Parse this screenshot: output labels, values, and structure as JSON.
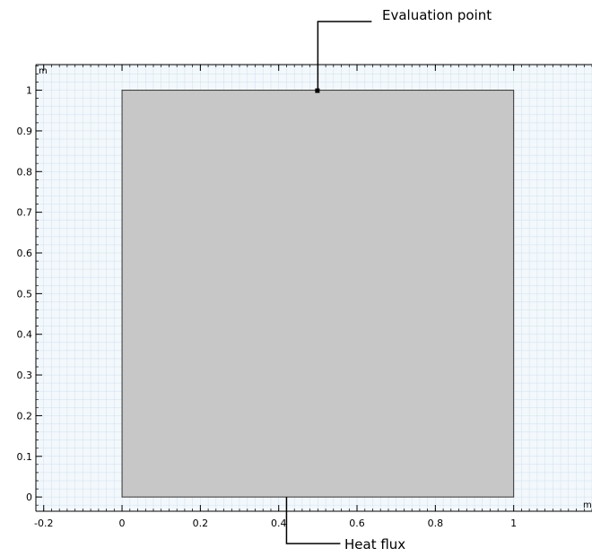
{
  "plot": {
    "x_range": [
      -0.22,
      1.2
    ],
    "y_range": [
      -0.035,
      1.063
    ],
    "x_ticks": [
      -0.2,
      0,
      0.2,
      0.4,
      0.6,
      0.8,
      1
    ],
    "x_tick_labels": [
      "-0.2",
      "0",
      "0.2",
      "0.4",
      "0.6",
      "0.8",
      "1"
    ],
    "y_ticks": [
      0,
      0.1,
      0.2,
      0.3,
      0.4,
      0.5,
      0.6,
      0.7,
      0.8,
      0.9,
      1
    ],
    "y_tick_labels": [
      "0",
      "0.1",
      "0.2",
      "0.3",
      "0.4",
      "0.5",
      "0.6",
      "0.7",
      "0.8",
      "0.9",
      "1"
    ],
    "x_unit": "m",
    "y_unit": "m",
    "minor_step": 0.02,
    "grid": true,
    "colors": {
      "grid_background": "#f3f8fc",
      "grid_lines": "#cfe0ee",
      "domain_fill": "#c7c7c7",
      "domain_stroke": "#333333"
    }
  },
  "geometry": {
    "domain": {
      "shape": "square",
      "x_min": 0,
      "x_max": 1,
      "y_min": 0,
      "y_max": 1
    }
  },
  "annotations": {
    "evaluation_point": {
      "label": "Evaluation point",
      "x": 0.5,
      "y": 1
    },
    "heat_flux": {
      "label": "Heat flux",
      "x": 0.42,
      "y": 0
    }
  }
}
